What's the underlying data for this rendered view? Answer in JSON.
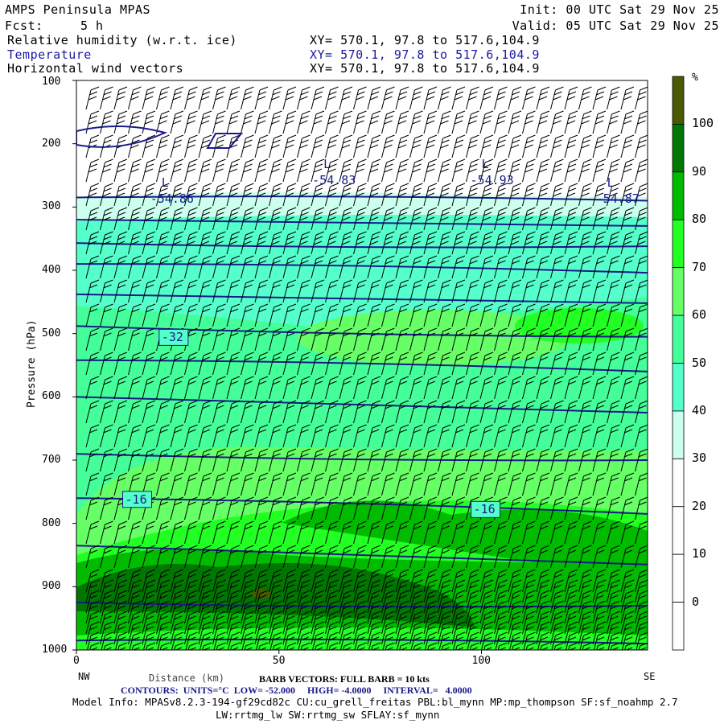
{
  "header": {
    "title": "AMPS Peninsula MPAS",
    "init": "Init: 00 UTC Sat 29 Nov 25",
    "fcst_label": "Fcst:",
    "fcst_value": "5 h",
    "valid": "Valid: 05 UTC Sat 29 Nov 25",
    "fields": [
      {
        "name": "Relative humidity (w.r.t. ice)",
        "xy": "XY= 570.1, 97.8 to 517.6,104.9"
      },
      {
        "name": "Temperature",
        "xy": "XY= 570.1, 97.8 to 517.6,104.9"
      },
      {
        "name": "Horizontal wind vectors",
        "xy": "XY= 570.1, 97.8 to 517.6,104.9"
      }
    ]
  },
  "footer": {
    "left_end": "NW",
    "right_end": "SE",
    "barb": "BARB VECTORS: FULL BARB = 10 kts",
    "contours": "CONTOURS:  UNITS=°C  LOW= -52.000     HIGH= -4.0000     INTERVAL=   4.0000",
    "model_info": "Model Info: MPASv8.2.3-194-gf29cd82c CU:cu_grell_freitas PBL:bl_mynn MP:mp_thompson SF:sf_noahmp 2.7",
    "model_info2": "LW:rrtmg_lw SW:rrtmg_sw SFLAY:sf_mynn"
  },
  "colors": {
    "contour": "#1a1a8c",
    "bar": [
      "#ffffff",
      "#ffffff",
      "#ffffff",
      "#ffffff",
      "#ccffee",
      "#55ffcc",
      "#44ff99",
      "#66ff66",
      "#22ff22",
      "#00bb00",
      "#007700",
      "#4a5a00"
    ]
  },
  "chart_data": {
    "type": "cross-section",
    "xlabel": "Distance (km)",
    "ylabel": "Pressure (hPa)",
    "xlim": [
      0,
      141
    ],
    "ylim": [
      1000,
      100
    ],
    "xticks": [
      "0",
      "50",
      "100"
    ],
    "yticks": [
      "100",
      "200",
      "300",
      "400",
      "500",
      "600",
      "700",
      "800",
      "900",
      "1000"
    ],
    "colorbar": {
      "unit": "%",
      "labels": [
        "100",
        "90",
        "80",
        "70",
        "60",
        "50",
        "40",
        "30",
        "20",
        "10",
        "0"
      ]
    },
    "temperature_contours": [
      {
        "value": -52,
        "p_left": 285,
        "p_right": 290
      },
      {
        "value": -48,
        "p_left": 320,
        "p_right": 330
      },
      {
        "value": -44,
        "p_left": 357,
        "p_right": 362
      },
      {
        "value": -40,
        "p_left": 390,
        "p_right": 404
      },
      {
        "value": -36,
        "p_left": 438,
        "p_right": 452
      },
      {
        "value": -32,
        "p_left": 488,
        "p_right": 505
      },
      {
        "value": -28,
        "p_left": 542,
        "p_right": 560
      },
      {
        "value": -24,
        "p_left": 600,
        "p_right": 625
      },
      {
        "value": -20,
        "p_left": 690,
        "p_right": 700
      },
      {
        "value": -16,
        "p_left": 760,
        "p_right": 785
      },
      {
        "value": -12,
        "p_left": 835,
        "p_right": 865
      },
      {
        "value": -8,
        "p_left": 925,
        "p_right": 930
      },
      {
        "value": -4,
        "p_left": 985,
        "p_right": 990
      }
    ],
    "contour_labels": [
      {
        "text": "-32",
        "x": 24,
        "p": 506
      },
      {
        "text": "-16",
        "x": 15,
        "p": 762
      },
      {
        "text": "-16",
        "x": 101,
        "p": 778
      }
    ],
    "lows": [
      {
        "text": "-54.86",
        "x": 21,
        "p": 292
      },
      {
        "text": "-54.83",
        "x": 61,
        "p": 263
      },
      {
        "text": "-54.93",
        "x": 100,
        "p": 263
      },
      {
        "text": "-54.87",
        "x": 131,
        "p": 292
      }
    ]
  }
}
